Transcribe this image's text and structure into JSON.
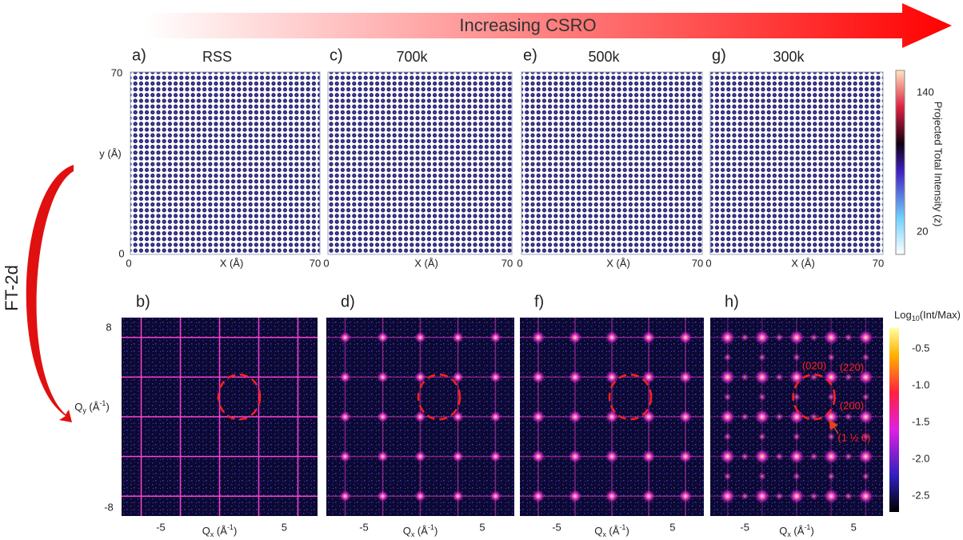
{
  "banner": "Increasing CSRO",
  "transform_label": "FT-2d",
  "real_space": {
    "y_label": "y (Å)",
    "x_label": "X (Å)",
    "y_ticks": [
      "70",
      "0"
    ],
    "x_ticks": [
      "0",
      "70"
    ],
    "panels": [
      {
        "letter": "a)",
        "title": "RSS"
      },
      {
        "letter": "c)",
        "title": "700k"
      },
      {
        "letter": "e)",
        "title": "500k"
      },
      {
        "letter": "g)",
        "title": "300k"
      }
    ]
  },
  "colorbar_top": {
    "label": "Projected Total Intensity (z)",
    "ticks": [
      "140",
      "20"
    ]
  },
  "reciprocal": {
    "y_label": {
      "main": "Q",
      "sub": "y",
      "unit": " (Å",
      "sup": "-1",
      "close": ")"
    },
    "x_label": {
      "main": "Q",
      "sub": "x",
      "unit": " (Å",
      "sup": "-1",
      "close": ")"
    },
    "y_ticks": [
      "8",
      "-8"
    ],
    "x_ticks": [
      "-5",
      "5"
    ],
    "panels": [
      {
        "letter": "b)"
      },
      {
        "letter": "d)"
      },
      {
        "letter": "f)"
      },
      {
        "letter": "h)"
      }
    ],
    "annotations": [
      "(020)",
      "(220)",
      "(200)",
      "(1 ½ 0)"
    ]
  },
  "colorbar_bottom": {
    "label": {
      "main": "Log",
      "sub": "10",
      "rest": "(Int/Max)"
    },
    "ticks": [
      "-0.5",
      "-1.0",
      "-1.5",
      "-2.0",
      "-2.5"
    ]
  }
}
